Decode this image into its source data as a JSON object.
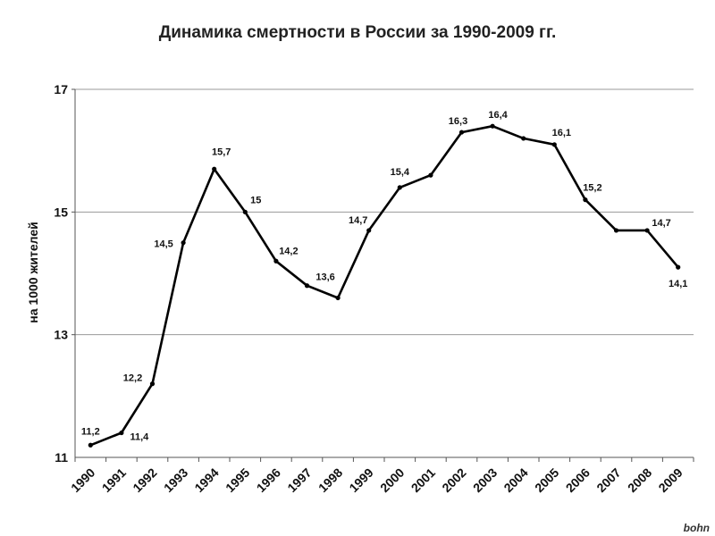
{
  "chart_data": {
    "type": "line",
    "title": "Динамика смертности в России за 1990-2009 гг.",
    "ylabel": "на 1000 жителей",
    "xlabel": "",
    "ylim": [
      11,
      17
    ],
    "yticks": [
      "11",
      "13",
      "15",
      "17"
    ],
    "grid": true,
    "line_color": "#000000",
    "categories": [
      "1990",
      "1991",
      "1992",
      "1993",
      "1994",
      "1995",
      "1996",
      "1997",
      "1998",
      "1999",
      "2000",
      "2001",
      "2002",
      "2003",
      "2004",
      "2005",
      "2006",
      "2007",
      "2008",
      "2009"
    ],
    "values": [
      11.2,
      11.4,
      12.2,
      14.5,
      15.7,
      15.0,
      14.2,
      13.8,
      13.6,
      14.7,
      15.4,
      15.6,
      16.3,
      16.4,
      16.2,
      16.1,
      15.2,
      14.7,
      14.7,
      14.1
    ],
    "data_labels": [
      "11,2",
      "11,4",
      "12,2",
      "14,5",
      "15,7",
      "15",
      "14,2",
      "",
      "13,6",
      "14,7",
      "15,4",
      "",
      "16,3",
      "16,4",
      "",
      "16,1",
      "15,2",
      "",
      "14,7",
      "14,1"
    ]
  },
  "watermark": "bohn"
}
